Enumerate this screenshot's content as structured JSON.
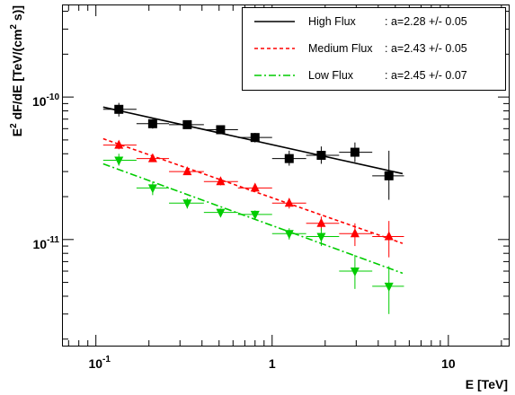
{
  "chart_data": {
    "type": "scatter",
    "title": "",
    "xlabel": "E [TeV]",
    "ylabel_parts": [
      "E",
      "2",
      " dF/dE [TeV/(cm",
      "2",
      " s)]"
    ],
    "xscale": "log",
    "yscale": "log",
    "xlim": [
      0.065,
      22
    ],
    "ylim": [
      1.8e-12,
      4.4e-10
    ],
    "x_ticks": [
      {
        "value": 0.1,
        "base": "10",
        "exp": "-1"
      },
      {
        "value": 1,
        "base": "1",
        "exp": ""
      },
      {
        "value": 10,
        "base": "10",
        "exp": ""
      }
    ],
    "y_ticks": [
      {
        "value": 1e-11,
        "base": "10",
        "exp": "-11"
      },
      {
        "value": 1e-10,
        "base": "10",
        "exp": "-10"
      }
    ],
    "grid": false,
    "legend_position": "top-right",
    "series": [
      {
        "name": "High Flux",
        "fit_label": ":  a=2.28 +/- 0.05",
        "color": "#000000",
        "marker": "square",
        "line_style": "solid",
        "fit": {
          "x": [
            0.11,
            5.5
          ],
          "y": [
            8.5e-11,
            2.9e-11
          ]
        },
        "points": [
          {
            "x": 0.135,
            "y": 8.2e-11,
            "xlo": 0.11,
            "xhi": 0.17,
            "ylo": 7.3e-11,
            "yhi": 9.1e-11
          },
          {
            "x": 0.21,
            "y": 6.5e-11,
            "xlo": 0.17,
            "xhi": 0.26,
            "ylo": 6e-11,
            "yhi": 7e-11
          },
          {
            "x": 0.33,
            "y": 6.4e-11,
            "xlo": 0.26,
            "xhi": 0.41,
            "ylo": 6e-11,
            "yhi": 6.8e-11
          },
          {
            "x": 0.51,
            "y": 5.9e-11,
            "xlo": 0.41,
            "xhi": 0.64,
            "ylo": 5.5e-11,
            "yhi": 6.3e-11
          },
          {
            "x": 0.8,
            "y": 5.2e-11,
            "xlo": 0.64,
            "xhi": 1.0,
            "ylo": 4.8e-11,
            "yhi": 5.6e-11
          },
          {
            "x": 1.25,
            "y": 3.7e-11,
            "xlo": 1.0,
            "xhi": 1.56,
            "ylo": 3.3e-11,
            "yhi": 4.2e-11
          },
          {
            "x": 1.9,
            "y": 3.9e-11,
            "xlo": 1.56,
            "xhi": 2.4,
            "ylo": 3.4e-11,
            "yhi": 4.5e-11
          },
          {
            "x": 2.95,
            "y": 4.1e-11,
            "xlo": 2.4,
            "xhi": 3.7,
            "ylo": 3.5e-11,
            "yhi": 4.8e-11
          },
          {
            "x": 4.6,
            "y": 2.8e-11,
            "xlo": 3.7,
            "xhi": 5.6,
            "ylo": 1.9e-11,
            "yhi": 4.2e-11
          }
        ]
      },
      {
        "name": "Medium Flux",
        "fit_label": ":  a=2.43 +/- 0.05",
        "color": "#ff0000",
        "marker": "triangle-up",
        "line_style": "dashed",
        "fit": {
          "x": [
            0.11,
            5.5
          ],
          "y": [
            5.1e-11,
            9.4e-12
          ]
        },
        "points": [
          {
            "x": 0.135,
            "y": 4.6e-11,
            "xlo": 0.11,
            "xhi": 0.17,
            "ylo": 4.3e-11,
            "yhi": 4.9e-11
          },
          {
            "x": 0.21,
            "y": 3.7e-11,
            "xlo": 0.17,
            "xhi": 0.26,
            "ylo": 3.5e-11,
            "yhi": 3.9e-11
          },
          {
            "x": 0.33,
            "y": 3e-11,
            "xlo": 0.26,
            "xhi": 0.41,
            "ylo": 2.85e-11,
            "yhi": 3.15e-11
          },
          {
            "x": 0.51,
            "y": 2.55e-11,
            "xlo": 0.41,
            "xhi": 0.64,
            "ylo": 2.4e-11,
            "yhi": 2.7e-11
          },
          {
            "x": 0.8,
            "y": 2.3e-11,
            "xlo": 0.64,
            "xhi": 1.0,
            "ylo": 2.15e-11,
            "yhi": 2.45e-11
          },
          {
            "x": 1.25,
            "y": 1.8e-11,
            "xlo": 1.0,
            "xhi": 1.56,
            "ylo": 1.65e-11,
            "yhi": 1.95e-11
          },
          {
            "x": 1.9,
            "y": 1.3e-11,
            "xlo": 1.56,
            "xhi": 2.4,
            "ylo": 1.15e-11,
            "yhi": 1.45e-11
          },
          {
            "x": 2.95,
            "y": 1.1e-11,
            "xlo": 2.4,
            "xhi": 3.7,
            "ylo": 9e-12,
            "yhi": 1.3e-11
          },
          {
            "x": 4.6,
            "y": 1.05e-11,
            "xlo": 3.7,
            "xhi": 5.6,
            "ylo": 7.5e-12,
            "yhi": 1.35e-11
          }
        ]
      },
      {
        "name": "Low Flux",
        "fit_label": ":  a=2.45 +/- 0.07",
        "color": "#00cc00",
        "marker": "triangle-down",
        "line_style": "dashdot",
        "fit": {
          "x": [
            0.11,
            5.5
          ],
          "y": [
            3.4e-11,
            5.8e-12
          ]
        },
        "points": [
          {
            "x": 0.135,
            "y": 3.6e-11,
            "xlo": 0.11,
            "xhi": 0.17,
            "ylo": 3.3e-11,
            "yhi": 4e-11
          },
          {
            "x": 0.21,
            "y": 2.3e-11,
            "xlo": 0.17,
            "xhi": 0.26,
            "ylo": 2.05e-11,
            "yhi": 2.55e-11
          },
          {
            "x": 0.33,
            "y": 1.8e-11,
            "xlo": 0.26,
            "xhi": 0.41,
            "ylo": 1.65e-11,
            "yhi": 1.95e-11
          },
          {
            "x": 0.51,
            "y": 1.55e-11,
            "xlo": 0.41,
            "xhi": 0.64,
            "ylo": 1.45e-11,
            "yhi": 1.65e-11
          },
          {
            "x": 0.8,
            "y": 1.5e-11,
            "xlo": 0.64,
            "xhi": 1.0,
            "ylo": 1.4e-11,
            "yhi": 1.6e-11
          },
          {
            "x": 1.25,
            "y": 1.1e-11,
            "xlo": 1.0,
            "xhi": 1.56,
            "ylo": 1e-11,
            "yhi": 1.2e-11
          },
          {
            "x": 1.9,
            "y": 1.05e-11,
            "xlo": 1.56,
            "xhi": 2.4,
            "ylo": 9e-12,
            "yhi": 1.2e-11
          },
          {
            "x": 2.95,
            "y": 6e-12,
            "xlo": 2.4,
            "xhi": 3.7,
            "ylo": 4.5e-12,
            "yhi": 7.8e-12
          },
          {
            "x": 4.6,
            "y": 4.7e-12,
            "xlo": 3.7,
            "xhi": 5.6,
            "ylo": 3e-12,
            "yhi": 6.5e-12
          }
        ]
      }
    ]
  }
}
